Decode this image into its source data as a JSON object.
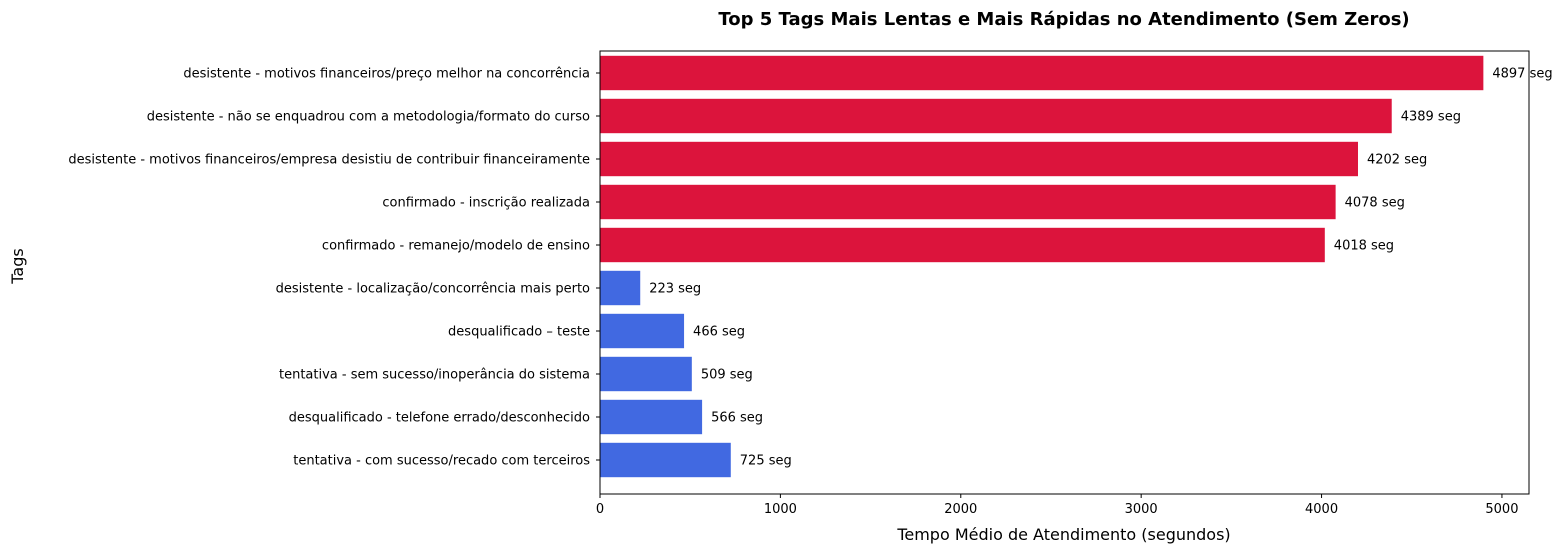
{
  "chart_data": {
    "type": "bar",
    "orientation": "horizontal",
    "title": "Top 5 Tags Mais Lentas e Mais Rápidas no Atendimento (Sem Zeros)",
    "xlabel": "Tempo Médio de Atendimento (segundos)",
    "ylabel": "Tags",
    "xlim": [
      0,
      5150
    ],
    "xticks": [
      0,
      1000,
      2000,
      3000,
      4000,
      5000
    ],
    "grid": false,
    "value_suffix": " seg",
    "categories": [
      "desistente - motivos financeiros/preço melhor na concorrência",
      "desistente - não se enquadrou com a metodologia/formato do curso",
      "desistente - motivos financeiros/empresa desistiu de contribuir financeiramente",
      "confirmado - inscrição realizada",
      "confirmado - remanejo/modelo de ensino",
      "desistente - localização/concorrência mais perto",
      "desqualificado – teste",
      "tentativa - sem sucesso/inoperância do sistema",
      "desqualificado - telefone errado/desconhecido",
      "tentativa - com sucesso/recado com terceiros"
    ],
    "values": [
      4897,
      4389,
      4202,
      4078,
      4018,
      223,
      466,
      509,
      566,
      725
    ],
    "bar_colors": [
      "#dc143c",
      "#dc143c",
      "#dc143c",
      "#dc143c",
      "#dc143c",
      "#4169e1",
      "#4169e1",
      "#4169e1",
      "#4169e1",
      "#4169e1"
    ]
  }
}
